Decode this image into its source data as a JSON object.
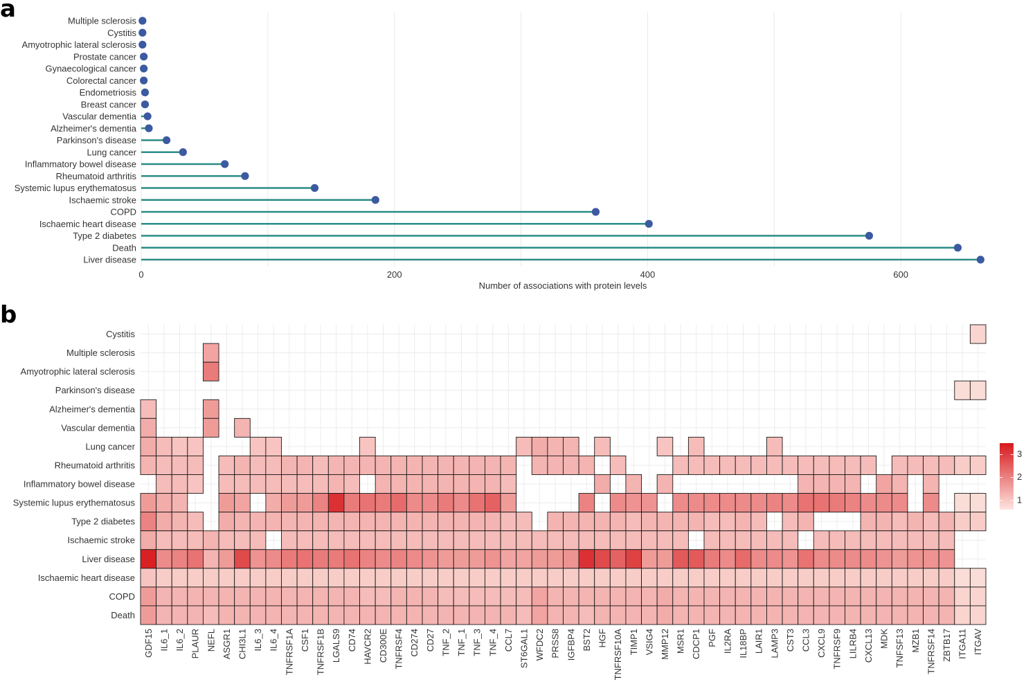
{
  "chart_data": [
    {
      "panel": "a",
      "type": "lollipop",
      "xlabel": "Number of associations with protein levels",
      "xlim": [
        0,
        665
      ],
      "xticks": [
        0,
        200,
        400,
        600
      ],
      "grid": true,
      "colors": {
        "stem": "#2a8c86",
        "point": "#3b5aa0"
      },
      "categories": [
        "Multiple sclerosis",
        "Cystitis",
        "Amyotrophic lateral sclerosis",
        "Prostate cancer",
        "Gynaecological cancer",
        "Colorectal cancer",
        "Endometriosis",
        "Breast cancer",
        "Vascular dementia",
        "Alzheimer's dementia",
        "Parkinson's disease",
        "Lung cancer",
        "Inflammatory bowel disease",
        "Rheumatoid arthritis",
        "Systemic lupus erythematosus",
        "Ischaemic stroke",
        "COPD",
        "Ischaemic heart disease",
        "Type 2 diabetes",
        "Death",
        "Liver disease"
      ],
      "values": [
        1,
        1,
        1,
        2,
        2,
        2,
        3,
        3,
        5,
        6,
        20,
        33,
        66,
        82,
        137,
        185,
        359,
        401,
        575,
        645,
        663
      ]
    },
    {
      "panel": "b",
      "type": "heatmap",
      "legend": {
        "ticks": [
          1,
          2,
          3
        ],
        "placement": "right",
        "colors": [
          "#fde5e0",
          "#d7191c"
        ]
      },
      "colors": {
        "zero": "#fdf1ee",
        "max": "#d7191c"
      },
      "rows": [
        "Cystitis",
        "Multiple sclerosis",
        "Amyotrophic lateral sclerosis",
        "Parkinson's disease",
        "Alzheimer's dementia",
        "Vascular dementia",
        "Lung cancer",
        "Rheumatoid arthritis",
        "Inflammatory bowel disease",
        "Systemic lupus erythematosus",
        "Type 2 diabetes",
        "Ischaemic stroke",
        "Liver disease",
        "Ischaemic heart disease",
        "COPD",
        "Death"
      ],
      "columns": [
        "GDF15",
        "IL6_1",
        "IL6_2",
        "PLAUR",
        "NEFL",
        "ASGR1",
        "CHI3L1",
        "IL6_3",
        "IL6_4",
        "TNFRSF1A",
        "CSF1",
        "TNFRSF1B",
        "LGALS9",
        "CD74",
        "HAVCR2",
        "CD300E",
        "TNFRSF4",
        "CD274",
        "CD27",
        "TNF_2",
        "TNF_1",
        "TNF_3",
        "TNF_4",
        "CCL7",
        "ST6GAL1",
        "WFDC2",
        "PRSS8",
        "IGFBP4",
        "BST2",
        "HGF",
        "TNFRSF10A",
        "TIMP1",
        "VSIG4",
        "MMP12",
        "MSR1",
        "CDCP1",
        "PGF",
        "IL2RA",
        "IL18BP",
        "LAIR1",
        "LAMP3",
        "CST3",
        "CCL3",
        "CXCL9",
        "TNFRSF9",
        "LILRB4",
        "CXCL13",
        "MDK",
        "TNFSF13",
        "MZB1",
        "TNFRSF14",
        "ZBTB17",
        "ITGA11",
        "ITGAV"
      ],
      "cells": [
        [
          0,
          0,
          0,
          0,
          0,
          0,
          0,
          0,
          0,
          0,
          0,
          0,
          0,
          0,
          0,
          0,
          0,
          0,
          0,
          0,
          0,
          0,
          0,
          0,
          0,
          0,
          0,
          0,
          0,
          0,
          0,
          0,
          0,
          0,
          0,
          0,
          0,
          0,
          0,
          0,
          0,
          0,
          0,
          0,
          0,
          0,
          0,
          0,
          0,
          0,
          0,
          0,
          0,
          1.2
        ],
        [
          0,
          0,
          0,
          0,
          1.8,
          0,
          0,
          0,
          0,
          0,
          0,
          0,
          0,
          0,
          0,
          0,
          0,
          0,
          0,
          0,
          0,
          0,
          0,
          0,
          0,
          0,
          0,
          0,
          0,
          0,
          0,
          0,
          0,
          0,
          0,
          0,
          0,
          0,
          0,
          0,
          0,
          0,
          0,
          0,
          0,
          0,
          0,
          0,
          0,
          0,
          0,
          0,
          0,
          0
        ],
        [
          0,
          0,
          0,
          0,
          2.3,
          0,
          0,
          0,
          0,
          0,
          0,
          0,
          0,
          0,
          0,
          0,
          0,
          0,
          0,
          0,
          0,
          0,
          0,
          0,
          0,
          0,
          0,
          0,
          0,
          0,
          0,
          0,
          0,
          0,
          0,
          0,
          0,
          0,
          0,
          0,
          0,
          0,
          0,
          0,
          0,
          0,
          0,
          0,
          0,
          0,
          0,
          0,
          0,
          0
        ],
        [
          0,
          0,
          0,
          0,
          0,
          0,
          0,
          0,
          0,
          0,
          0,
          0,
          0,
          0,
          0,
          0,
          0,
          0,
          0,
          0,
          0,
          0,
          0,
          0,
          0,
          0,
          0,
          0,
          0,
          0,
          0,
          0,
          0,
          0,
          0,
          0,
          0,
          0,
          0,
          0,
          0,
          0,
          0,
          0,
          0,
          0,
          0,
          0,
          0,
          0,
          0,
          0,
          1.1,
          1.1
        ],
        [
          1.5,
          0,
          0,
          0,
          1.9,
          0,
          0,
          0,
          0,
          0,
          0,
          0,
          0,
          0,
          0,
          0,
          0,
          0,
          0,
          0,
          0,
          0,
          0,
          0,
          0,
          0,
          0,
          0,
          0,
          0,
          0,
          0,
          0,
          0,
          0,
          0,
          0,
          0,
          0,
          0,
          0,
          0,
          0,
          0,
          0,
          0,
          0,
          0,
          0,
          0,
          0,
          0,
          0,
          0
        ],
        [
          1.7,
          0,
          0,
          0,
          1.9,
          0,
          1.6,
          0,
          0,
          0,
          0,
          0,
          0,
          0,
          0,
          0,
          0,
          0,
          0,
          0,
          0,
          0,
          0,
          0,
          0,
          0,
          0,
          0,
          0,
          0,
          0,
          0,
          0,
          0,
          0,
          0,
          0,
          0,
          0,
          0,
          0,
          0,
          0,
          0,
          0,
          0,
          0,
          0,
          0,
          0,
          0,
          0,
          0,
          0
        ],
        [
          1.7,
          1.5,
          1.4,
          1.4,
          0,
          0,
          0,
          1.4,
          1.4,
          0,
          0,
          0,
          0,
          0,
          1.4,
          0,
          0,
          0,
          0,
          0,
          0,
          0,
          0,
          0,
          1.5,
          1.7,
          1.6,
          1.6,
          0,
          1.5,
          0,
          0,
          0,
          1.4,
          0,
          1.5,
          0,
          0,
          0,
          0,
          1.5,
          0,
          0,
          0,
          0,
          0,
          0,
          0,
          0,
          0,
          0,
          0,
          0,
          0
        ],
        [
          1.6,
          1.5,
          1.5,
          1.5,
          0,
          1.5,
          1.6,
          1.5,
          1.5,
          1.6,
          1.6,
          1.5,
          1.6,
          1.6,
          1.6,
          1.6,
          1.6,
          1.6,
          1.6,
          1.6,
          1.6,
          1.6,
          1.6,
          1.6,
          0,
          1.6,
          1.6,
          1.6,
          1.6,
          0,
          1.5,
          0,
          0,
          0,
          1.5,
          1.5,
          1.5,
          1.5,
          1.5,
          1.5,
          1.5,
          1.5,
          1.5,
          1.5,
          1.5,
          1.5,
          1.5,
          0,
          1.5,
          1.5,
          1.5,
          1.5,
          1.3,
          1.3
        ],
        [
          0,
          1.5,
          1.5,
          1.4,
          0,
          1.5,
          1.5,
          1.5,
          1.5,
          1.5,
          1.5,
          1.5,
          1.6,
          1.5,
          0,
          1.6,
          1.6,
          1.6,
          1.6,
          1.6,
          1.6,
          1.6,
          1.6,
          1.5,
          0,
          0,
          0,
          0,
          0,
          1.7,
          0,
          1.6,
          0,
          1.6,
          0,
          0,
          0,
          0,
          0,
          0,
          0,
          0,
          1.6,
          1.6,
          1.6,
          1.6,
          0,
          1.8,
          1.6,
          0,
          1.6,
          0,
          0,
          0
        ],
        [
          1.9,
          1.7,
          1.6,
          0,
          0,
          1.9,
          1.8,
          0,
          1.7,
          1.9,
          1.9,
          2.2,
          3.2,
          2.3,
          2.4,
          2.3,
          2.5,
          2.1,
          2.1,
          2.3,
          2.1,
          2.4,
          2.6,
          1.9,
          0,
          0,
          0,
          0,
          2.2,
          0,
          2.1,
          2.0,
          2.0,
          0,
          2.1,
          2.1,
          2.1,
          2.1,
          2.1,
          2.1,
          2.2,
          2.1,
          2.4,
          2.4,
          2.3,
          2.2,
          2.1,
          2.1,
          2.1,
          0,
          2.1,
          0,
          1.1,
          1.1
        ],
        [
          2.2,
          1.7,
          1.6,
          1.5,
          0,
          1.7,
          1.6,
          1.6,
          1.6,
          1.6,
          1.6,
          1.6,
          1.6,
          1.6,
          1.6,
          1.6,
          1.6,
          1.6,
          1.6,
          1.6,
          1.6,
          1.6,
          1.6,
          1.5,
          1.5,
          0,
          1.6,
          1.6,
          1.6,
          1.6,
          1.6,
          1.5,
          1.6,
          1.6,
          1.6,
          1.6,
          1.5,
          1.5,
          1.6,
          1.5,
          0,
          1.5,
          1.6,
          0,
          0,
          0,
          1.6,
          1.6,
          1.5,
          1.6,
          1.5,
          1.6,
          1.3,
          1.3
        ],
        [
          1.7,
          1.5,
          1.5,
          1.5,
          1.6,
          1.5,
          1.5,
          1.5,
          0,
          1.5,
          1.5,
          1.5,
          1.5,
          1.5,
          1.5,
          1.5,
          1.5,
          1.5,
          1.5,
          1.5,
          1.5,
          1.5,
          1.5,
          1.5,
          1.5,
          1.5,
          1.5,
          1.5,
          1.5,
          1.5,
          1.5,
          1.5,
          1.5,
          1.5,
          1.5,
          0,
          1.5,
          1.5,
          1.5,
          1.5,
          1.5,
          1.5,
          0,
          1.5,
          1.5,
          1.5,
          1.5,
          1.5,
          1.5,
          1.5,
          1.5,
          1.5,
          0,
          0
        ],
        [
          3.4,
          2.1,
          2.2,
          2.4,
          1.6,
          1.9,
          2.9,
          2.0,
          2.1,
          2.3,
          2.4,
          2.3,
          2.3,
          2.4,
          2.2,
          2.1,
          2.2,
          2.1,
          2.0,
          1.9,
          1.9,
          1.9,
          2.0,
          1.8,
          1.8,
          1.9,
          1.9,
          2.0,
          3.2,
          2.9,
          2.6,
          3.0,
          1.9,
          1.9,
          2.7,
          2.7,
          2.3,
          2.1,
          2.5,
          2.1,
          2.1,
          2.0,
          2.4,
          2.1,
          2.1,
          2.1,
          2.1,
          2.0,
          1.9,
          2.0,
          2.0,
          2.0,
          0,
          0
        ],
        [
          1.4,
          1.3,
          1.3,
          1.3,
          1.3,
          1.3,
          1.3,
          1.3,
          1.3,
          1.3,
          1.3,
          1.3,
          1.3,
          1.3,
          1.3,
          1.3,
          1.3,
          1.3,
          1.3,
          1.3,
          1.3,
          1.3,
          1.3,
          1.3,
          1.3,
          1.3,
          1.3,
          1.3,
          1.3,
          1.3,
          1.3,
          1.3,
          1.3,
          1.3,
          1.3,
          1.3,
          1.3,
          1.3,
          1.3,
          1.3,
          1.3,
          1.3,
          1.3,
          1.3,
          1.3,
          1.3,
          1.3,
          1.3,
          1.3,
          1.3,
          1.3,
          1.3,
          1.1,
          1.1
        ],
        [
          1.9,
          1.6,
          1.6,
          1.6,
          1.6,
          1.6,
          1.6,
          1.6,
          1.6,
          1.6,
          1.6,
          1.6,
          1.6,
          1.6,
          1.5,
          1.5,
          1.6,
          1.6,
          1.6,
          1.5,
          1.5,
          1.5,
          1.5,
          1.5,
          1.5,
          1.8,
          1.6,
          1.6,
          1.6,
          1.6,
          1.6,
          1.6,
          1.6,
          1.7,
          1.6,
          1.6,
          1.6,
          1.6,
          1.6,
          1.6,
          1.6,
          1.6,
          1.6,
          1.6,
          1.6,
          1.6,
          1.6,
          1.6,
          1.6,
          1.6,
          1.6,
          1.6,
          1.2,
          1.2
        ],
        [
          1.9,
          1.6,
          1.6,
          1.6,
          1.5,
          1.6,
          1.6,
          1.6,
          1.6,
          1.6,
          1.6,
          1.6,
          1.6,
          1.6,
          1.6,
          1.6,
          1.6,
          1.6,
          1.6,
          1.6,
          1.6,
          1.6,
          1.6,
          1.6,
          1.5,
          1.8,
          1.6,
          1.6,
          1.5,
          1.6,
          1.6,
          1.6,
          1.6,
          1.7,
          1.6,
          1.6,
          1.6,
          1.6,
          1.6,
          1.6,
          1.6,
          1.6,
          1.6,
          1.6,
          1.6,
          1.6,
          1.6,
          1.6,
          1.6,
          1.6,
          1.6,
          1.6,
          1.2,
          1.2
        ]
      ]
    }
  ],
  "panel_labels": {
    "a": "a",
    "b": "b"
  }
}
